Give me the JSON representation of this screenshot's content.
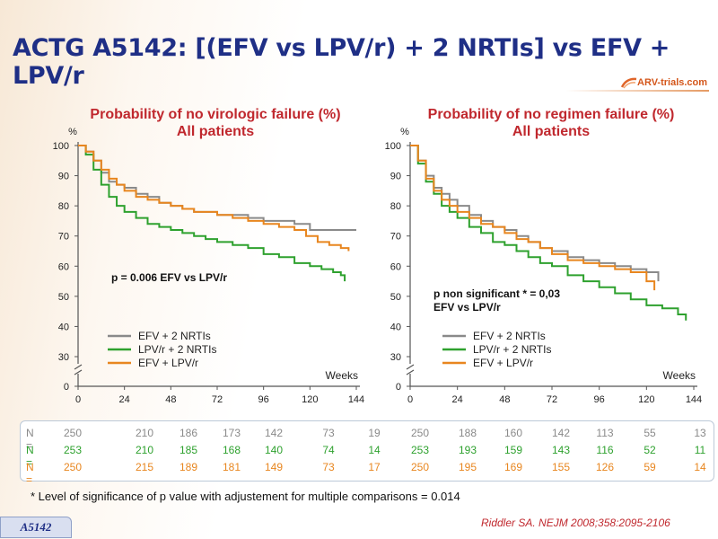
{
  "slide": {
    "title": "ACTG A5142: [(EFV vs LPV/r) + 2 NRTIs] vs EFV + LPV/r",
    "logo": "ARV-trials.com",
    "footnote": "* Level of significance of p value with adjustement for multiple comparisons = 0.014",
    "reference": "Riddler SA. NEJM 2008;358:2095-2106",
    "tag": "A5142"
  },
  "colors": {
    "efv_2nrti": "#8a8a8a",
    "lpv_2nrti": "#2ea12e",
    "efv_lpv": "#e8861f",
    "title": "#1f2f86",
    "chart_title": "#c0282e"
  },
  "chart_data": [
    {
      "type": "line",
      "title": "Probability of no virologic failure (%)",
      "subtitle": "All patients",
      "ylabel": "%",
      "xlabel": "Weeks",
      "xlim": [
        0,
        144
      ],
      "ylim": [
        0,
        100
      ],
      "xticks": [
        "0",
        "24",
        "48",
        "72",
        "96",
        "120",
        "144"
      ],
      "yticks": [
        "0",
        "30",
        "40",
        "50",
        "60",
        "70",
        "80",
        "90",
        "100"
      ],
      "y_axis_break": "between 0 and 30",
      "annotation": "p = 0.006 EFV vs LPV/r",
      "legend_position": "bottom-left",
      "series": [
        {
          "name": "EFV + 2 NRTIs",
          "x": [
            0,
            4,
            8,
            12,
            16,
            20,
            24,
            30,
            36,
            42,
            48,
            54,
            60,
            66,
            72,
            80,
            88,
            96,
            104,
            112,
            120,
            128,
            136,
            144
          ],
          "y": [
            100,
            98,
            95,
            91,
            88,
            87,
            86,
            84,
            83,
            81,
            80,
            79,
            78,
            78,
            77,
            77,
            76,
            75,
            75,
            74,
            72,
            72,
            72,
            72
          ]
        },
        {
          "name": "LPV/r + 2 NRTIs",
          "x": [
            0,
            4,
            8,
            12,
            16,
            20,
            24,
            30,
            36,
            42,
            48,
            54,
            60,
            66,
            72,
            80,
            88,
            96,
            104,
            112,
            120,
            126,
            132,
            136,
            138
          ],
          "y": [
            100,
            97,
            92,
            87,
            83,
            80,
            78,
            76,
            74,
            73,
            72,
            71,
            70,
            69,
            68,
            67,
            66,
            64,
            63,
            61,
            60,
            59,
            58,
            57,
            55
          ]
        },
        {
          "name": "EFV + LPV/r",
          "x": [
            0,
            4,
            8,
            12,
            16,
            20,
            24,
            30,
            36,
            42,
            48,
            54,
            60,
            66,
            72,
            80,
            88,
            96,
            104,
            112,
            118,
            124,
            130,
            136,
            140
          ],
          "y": [
            100,
            98,
            95,
            92,
            89,
            87,
            85,
            83,
            82,
            81,
            80,
            79,
            78,
            78,
            77,
            76,
            75,
            74,
            73,
            72,
            70,
            68,
            67,
            66,
            65
          ]
        }
      ]
    },
    {
      "type": "line",
      "title": "Probability of no regimen failure (%)",
      "subtitle": "All patients",
      "ylabel": "%",
      "xlabel": "Weeks",
      "xlim": [
        0,
        144
      ],
      "ylim": [
        0,
        100
      ],
      "xticks": [
        "0",
        "24",
        "48",
        "72",
        "96",
        "120",
        "144"
      ],
      "yticks": [
        "0",
        "30",
        "40",
        "50",
        "60",
        "70",
        "80",
        "90",
        "100"
      ],
      "y_axis_break": "between 0 and 30",
      "annotation": "p non significant * = 0,03 EFV vs LPV/r",
      "legend_position": "bottom-left",
      "series": [
        {
          "name": "EFV + 2 NRTIs",
          "x": [
            0,
            4,
            8,
            12,
            16,
            20,
            24,
            30,
            36,
            42,
            48,
            54,
            60,
            66,
            72,
            80,
            88,
            96,
            104,
            112,
            120,
            126
          ],
          "y": [
            100,
            95,
            90,
            86,
            84,
            82,
            80,
            77,
            75,
            73,
            72,
            70,
            68,
            66,
            65,
            63,
            62,
            61,
            60,
            59,
            58,
            55
          ]
        },
        {
          "name": "LPV/r + 2 NRTIs",
          "x": [
            0,
            4,
            8,
            12,
            16,
            20,
            24,
            30,
            36,
            42,
            48,
            54,
            60,
            66,
            72,
            80,
            88,
            96,
            104,
            112,
            120,
            128,
            136,
            140
          ],
          "y": [
            100,
            94,
            88,
            84,
            80,
            78,
            76,
            73,
            71,
            68,
            67,
            65,
            63,
            61,
            60,
            57,
            55,
            53,
            51,
            49,
            47,
            46,
            44,
            42
          ]
        },
        {
          "name": "EFV + LPV/r",
          "x": [
            0,
            4,
            8,
            12,
            16,
            20,
            24,
            30,
            36,
            42,
            48,
            54,
            60,
            66,
            72,
            80,
            88,
            96,
            104,
            112,
            120,
            124
          ],
          "y": [
            100,
            95,
            89,
            85,
            82,
            80,
            78,
            76,
            74,
            73,
            71,
            69,
            68,
            66,
            64,
            62,
            61,
            60,
            59,
            58,
            55,
            52
          ]
        }
      ]
    }
  ],
  "n_table": {
    "label": "N =",
    "left": [
      [
        "250",
        "210",
        "186",
        "173",
        "142",
        "73",
        "19"
      ],
      [
        "253",
        "210",
        "185",
        "168",
        "140",
        "74",
        "14"
      ],
      [
        "250",
        "215",
        "189",
        "181",
        "149",
        "73",
        "17"
      ]
    ],
    "right": [
      [
        "250",
        "188",
        "160",
        "142",
        "113",
        "55",
        "13"
      ],
      [
        "253",
        "193",
        "159",
        "143",
        "116",
        "52",
        "11"
      ],
      [
        "250",
        "195",
        "169",
        "155",
        "126",
        "59",
        "14"
      ]
    ]
  }
}
